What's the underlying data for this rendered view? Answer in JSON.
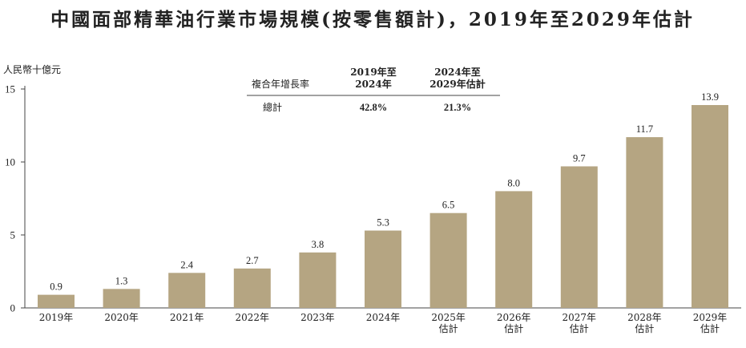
{
  "chart_data": {
    "type": "bar",
    "title": "中國面部精華油行業市場規模(按零售額計)，2019年至2029年估計",
    "ylabel": "人民幣十億元",
    "xlabel": "",
    "ylim": [
      0,
      15
    ],
    "yticks": [
      "0",
      "5",
      "10",
      "15"
    ],
    "grid": false,
    "bar_color": "#b5a582",
    "categories": [
      [
        "2019年"
      ],
      [
        "2020年"
      ],
      [
        "2021年"
      ],
      [
        "2022年"
      ],
      [
        "2023年"
      ],
      [
        "2024年"
      ],
      [
        "2025年",
        "估計"
      ],
      [
        "2026年",
        "估計"
      ],
      [
        "2027年",
        "估計"
      ],
      [
        "2028年",
        "估計"
      ],
      [
        "2029年",
        "估計"
      ]
    ],
    "values": [
      0.9,
      1.3,
      2.4,
      2.7,
      3.8,
      5.3,
      6.5,
      8.0,
      9.7,
      11.7,
      13.9
    ],
    "data_labels": [
      "0.9",
      "1.3",
      "2.4",
      "2.7",
      "3.8",
      "5.3",
      "6.5",
      "8.0",
      "9.7",
      "11.7",
      "13.9"
    ],
    "cagr_table": {
      "row_header": "複合年增長率",
      "columns": [
        [
          "2019年至",
          "2024年"
        ],
        [
          "2024年至",
          "2029年估計"
        ]
      ],
      "row_label": "總計",
      "values": [
        "42.8%",
        "21.3%"
      ]
    }
  }
}
